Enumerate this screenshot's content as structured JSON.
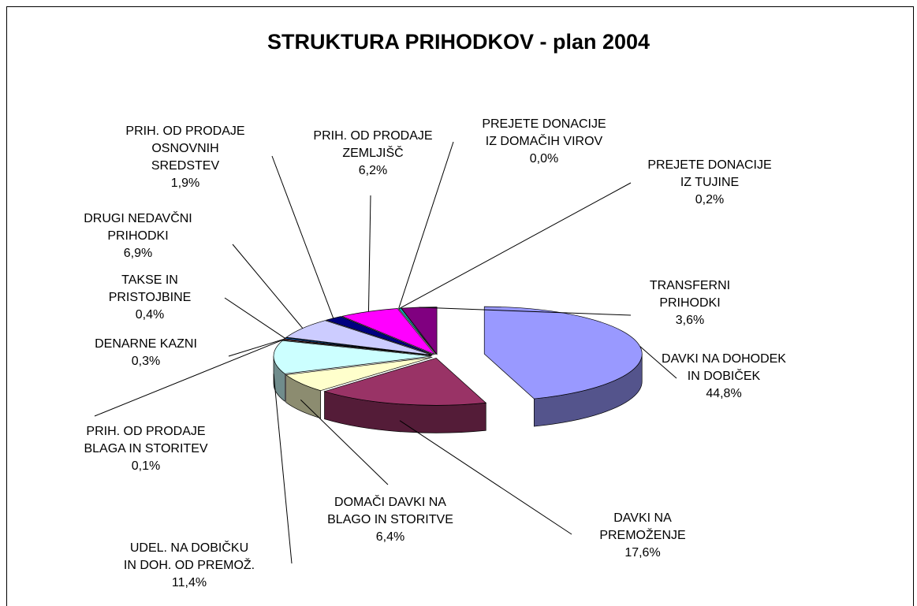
{
  "chart_data": {
    "type": "pie3d",
    "title": "STRUKTURA PRIHODKOV - plan 2004",
    "categories": [
      "DAVKI NA DOHODEK\nIN DOBIČEK",
      "DAVKI NA\nPREMOŽENJE",
      "DOMAČI DAVKI NA\nBLAGO IN STORITVE",
      "UDEL. NA DOBIČKU\nIN DOH. OD PREMOŽ.",
      "PRIH. OD PRODAJE\nBLAGA IN STORITEV",
      "DENARNE KAZNI",
      "TAKSE IN\nPRISTOJBINE",
      "DRUGI NEDAVČNI\nPRIHODKI",
      "PRIH. OD PRODAJE\nOSNOVNIH\nSREDSTEV",
      "PRIH. OD PRODAJE\nZEMLJIŠČ",
      "PREJETE DONACIJE\nIZ DOMAČIH VIROV",
      "PREJETE DONACIJE\nIZ TUJINE",
      "TRANSFERNI\nPRIHODKI"
    ],
    "values": [
      44.8,
      17.6,
      6.4,
      11.4,
      0.1,
      0.3,
      0.4,
      6.9,
      1.9,
      6.2,
      0.0,
      0.2,
      3.6
    ],
    "value_labels": [
      "44,8%",
      "17,6%",
      "6,4%",
      "11,4%",
      "0,1%",
      "0,3%",
      "0,4%",
      "6,9%",
      "1,9%",
      "6,2%",
      "0,0%",
      "0,2%",
      "3,6%"
    ],
    "colors": [
      "#9999ff",
      "#993366",
      "#ffffcc",
      "#ccffff",
      "#660066",
      "#ff8080",
      "#0066cc",
      "#ccccff",
      "#000080",
      "#ff00ff",
      "#808000",
      "#00ffff",
      "#800080"
    ]
  }
}
